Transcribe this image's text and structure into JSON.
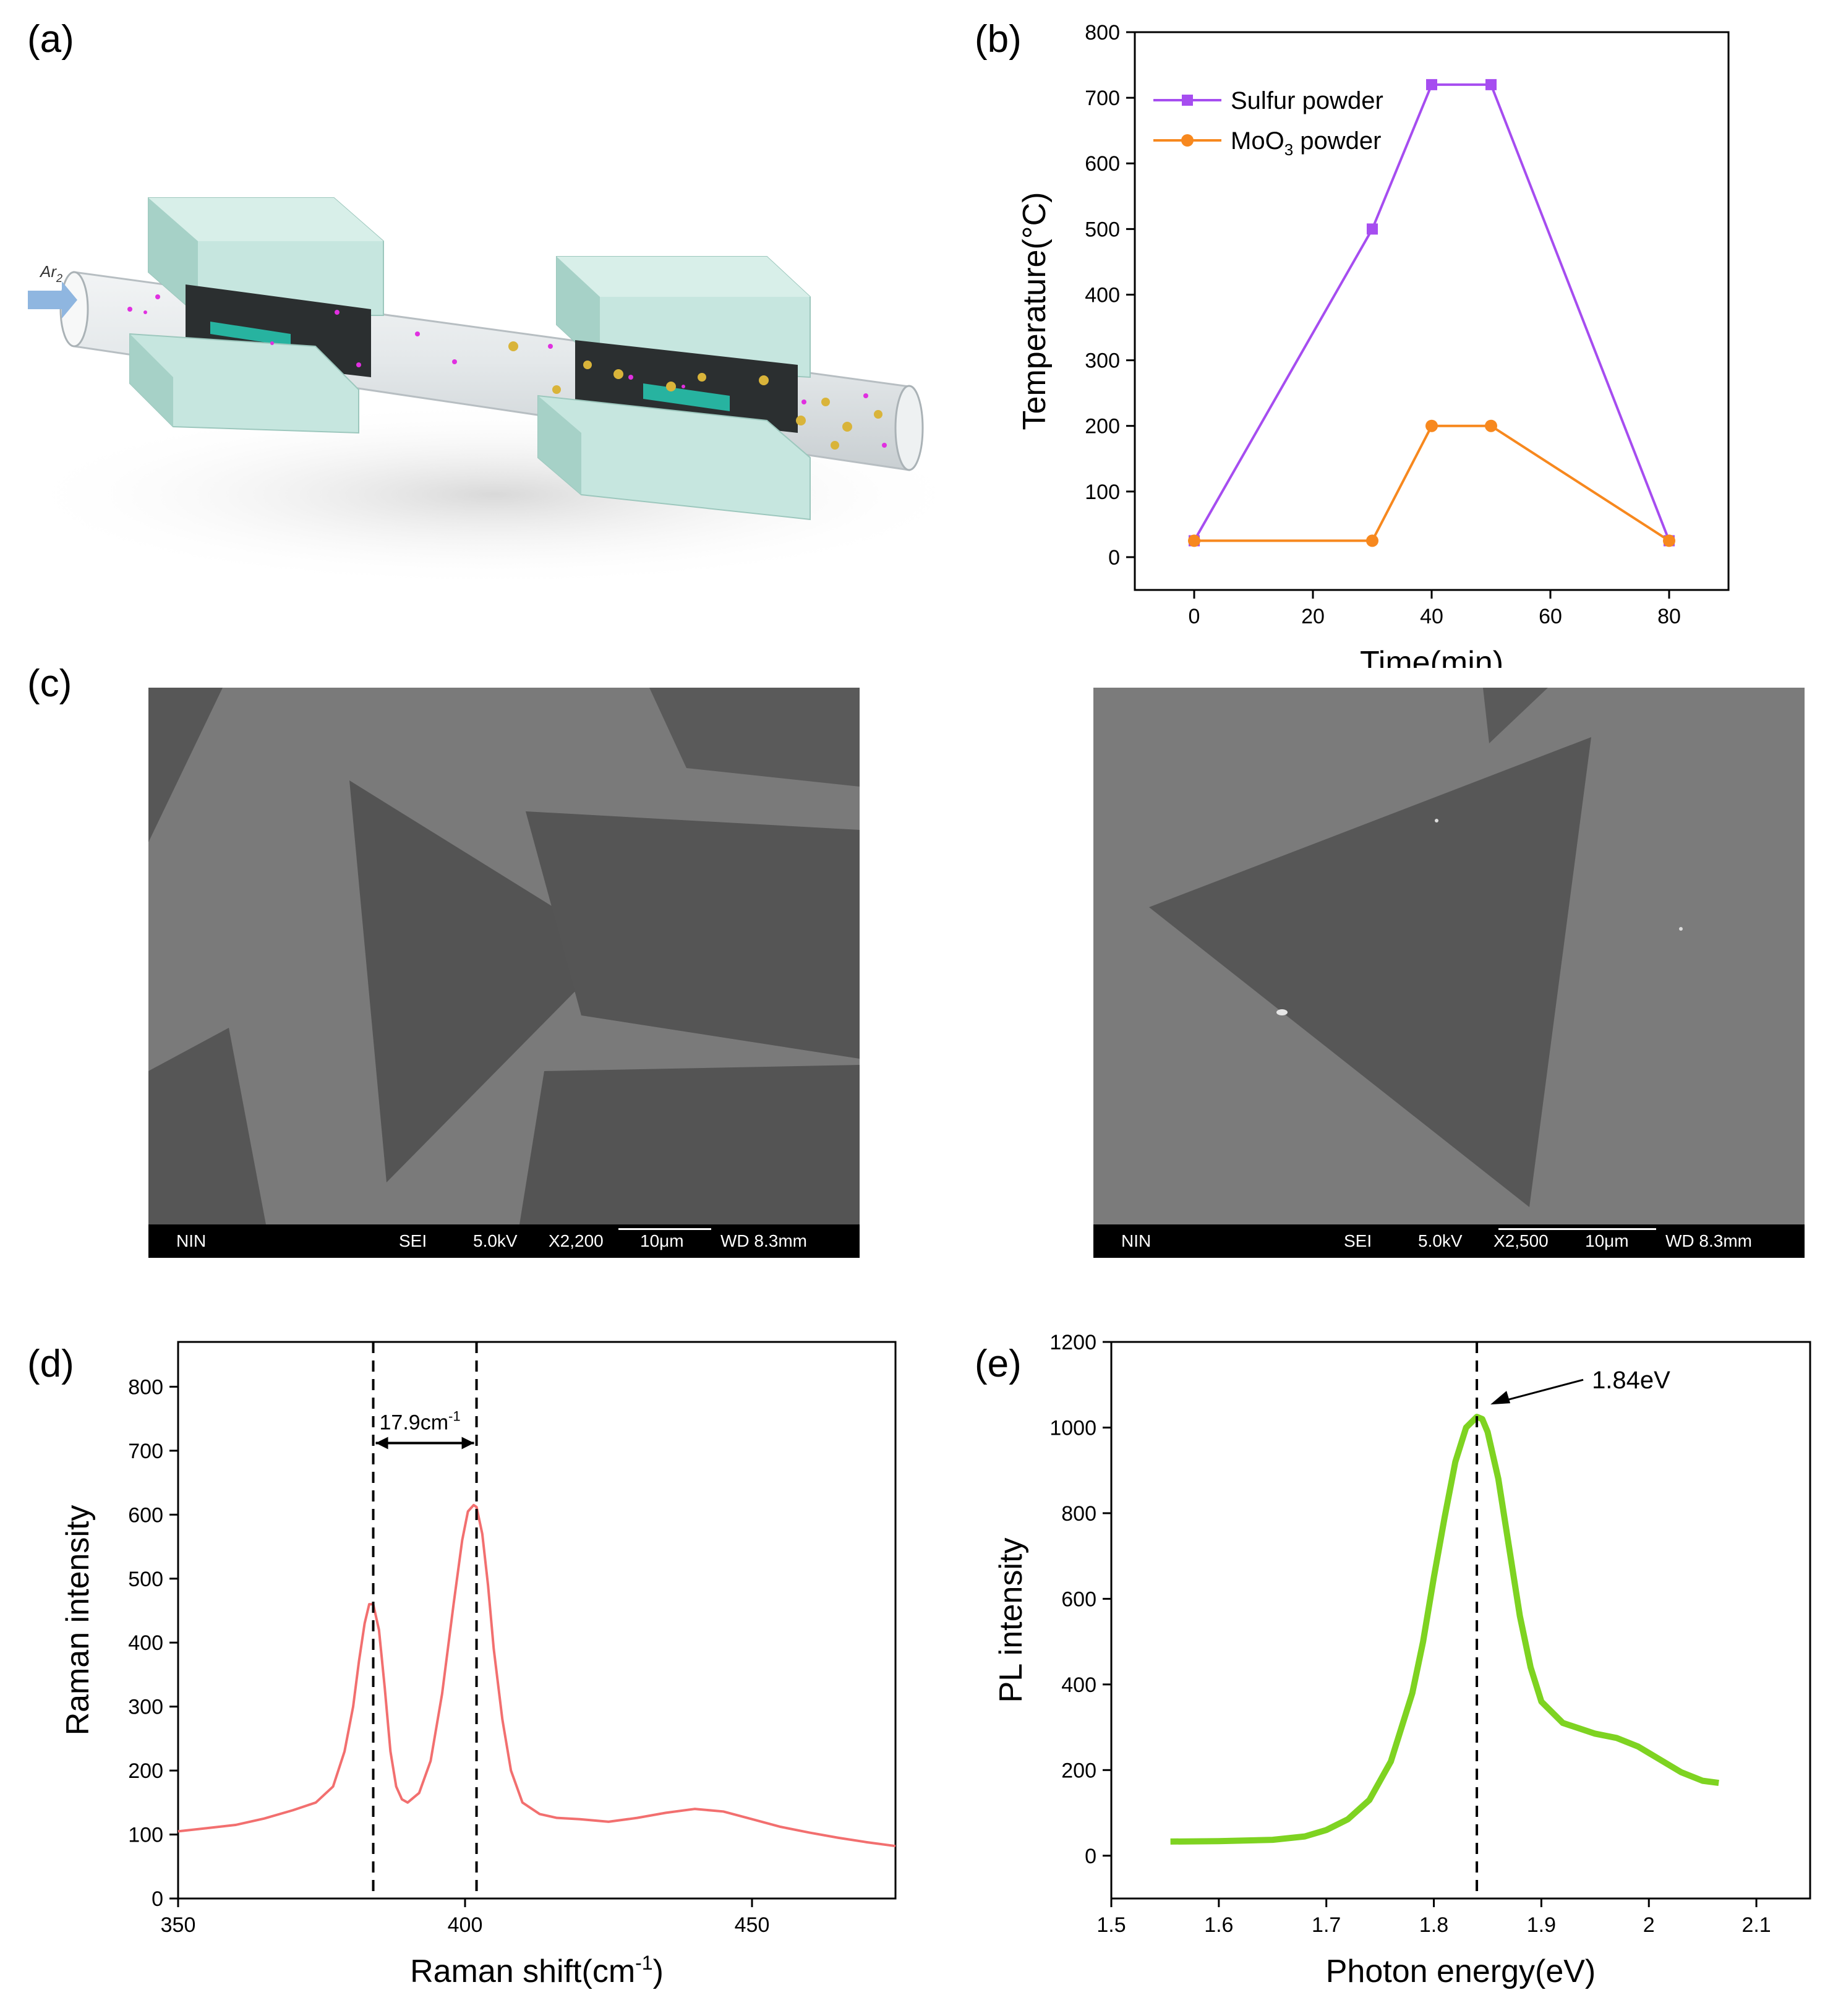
{
  "panels": {
    "a": {
      "label": "(a)",
      "gas_label": "Ar",
      "gas_subscript": "2",
      "colors": {
        "furnace": "#c6e6df",
        "boat": "#27b3a0",
        "tube": "#dfe4e6",
        "dots_magenta": "#e030e0",
        "dots_gold": "#d9b43a"
      }
    },
    "b": {
      "label": "(b)"
    },
    "c": {
      "label": "(c)"
    },
    "d": {
      "label": "(d)"
    },
    "e": {
      "label": "(e)"
    }
  },
  "sem": {
    "left": {
      "fields": [
        "NIN",
        "SEI",
        "5.0kV",
        "X2,200",
        "10μm",
        "WD 8.3mm"
      ]
    },
    "right": {
      "fields": [
        "NIN",
        "SEI",
        "5.0kV",
        "X2,500",
        "10μm",
        "WD 8.3mm"
      ]
    }
  },
  "chart_data": [
    {
      "panel": "b",
      "type": "line",
      "xlabel": "Time(min)",
      "ylabel": "Temperature(°C)",
      "xlim": [
        -10,
        90
      ],
      "ylim": [
        -50,
        800
      ],
      "xticks": [
        0,
        20,
        40,
        60,
        80
      ],
      "yticks": [
        0,
        100,
        200,
        300,
        400,
        500,
        600,
        700,
        800
      ],
      "legend_position": "top-left",
      "series": [
        {
          "name": "Sulfur powder",
          "color": "#a64df0",
          "marker": "square",
          "x": [
            0,
            30,
            40,
            50,
            80
          ],
          "y": [
            25,
            500,
            720,
            720,
            25
          ]
        },
        {
          "name": "MoO",
          "name_subscript": "3",
          "name_suffix": " powder",
          "color": "#f7881e",
          "marker": "circle",
          "x": [
            0,
            30,
            40,
            50,
            80
          ],
          "y": [
            25,
            25,
            200,
            200,
            25
          ]
        }
      ]
    },
    {
      "panel": "d",
      "type": "line",
      "xlabel": "Raman shift(cm",
      "xlabel_superscript": "-1",
      "xlabel_suffix": ")",
      "ylabel": "Raman intensity",
      "xlim": [
        350,
        475
      ],
      "ylim": [
        0,
        870
      ],
      "xticks": [
        350,
        400,
        450
      ],
      "yticks": [
        0,
        100,
        200,
        300,
        400,
        500,
        600,
        700,
        800
      ],
      "color": "#f26f6f",
      "vlines": [
        384,
        402
      ],
      "annotation": {
        "text": "17.9cm",
        "superscript": "-1",
        "y": 712
      },
      "series": [
        {
          "x": [
            350,
            355,
            360,
            365,
            370,
            374,
            377,
            379,
            380.5,
            381.5,
            382.5,
            383.3,
            384,
            385,
            386,
            387,
            388,
            389,
            390,
            392,
            394,
            396,
            398,
            399.5,
            400.5,
            401.5,
            402,
            403,
            404,
            405,
            406.5,
            408,
            410,
            413,
            416,
            420,
            425,
            430,
            435,
            440,
            445,
            450,
            455,
            460,
            465,
            470,
            475
          ],
          "y": [
            105,
            110,
            115,
            125,
            138,
            150,
            175,
            230,
            300,
            370,
            430,
            460,
            460,
            420,
            330,
            230,
            175,
            155,
            150,
            165,
            215,
            320,
            460,
            560,
            605,
            615,
            612,
            570,
            490,
            390,
            280,
            200,
            150,
            132,
            126,
            124,
            120,
            126,
            134,
            140,
            136,
            124,
            112,
            103,
            95,
            88,
            82
          ]
        }
      ]
    },
    {
      "panel": "e",
      "type": "line",
      "xlabel": "Photon energy(eV)",
      "ylabel": "PL intensity",
      "xlim": [
        1.5,
        2.15
      ],
      "ylim": [
        -100,
        1200
      ],
      "xticks": [
        1.5,
        1.6,
        1.7,
        1.8,
        1.9,
        2.0,
        2.1
      ],
      "yticks": [
        0,
        200,
        400,
        600,
        800,
        1000,
        1200
      ],
      "color": "#7ed321",
      "vlines": [
        1.84
      ],
      "annotation": {
        "text": "1.84eV",
        "x": 1.84,
        "y": 1025
      },
      "series": [
        {
          "x": [
            1.555,
            1.6,
            1.65,
            1.68,
            1.7,
            1.72,
            1.74,
            1.76,
            1.78,
            1.79,
            1.8,
            1.81,
            1.82,
            1.83,
            1.84,
            1.845,
            1.85,
            1.86,
            1.87,
            1.88,
            1.89,
            1.9,
            1.92,
            1.95,
            1.97,
            1.99,
            2.01,
            2.03,
            2.05,
            2.065
          ],
          "y": [
            33,
            34,
            37,
            45,
            60,
            85,
            130,
            220,
            380,
            500,
            650,
            790,
            920,
            1000,
            1025,
            1020,
            990,
            880,
            720,
            560,
            440,
            360,
            310,
            285,
            275,
            255,
            225,
            195,
            175,
            170
          ]
        }
      ]
    }
  ]
}
